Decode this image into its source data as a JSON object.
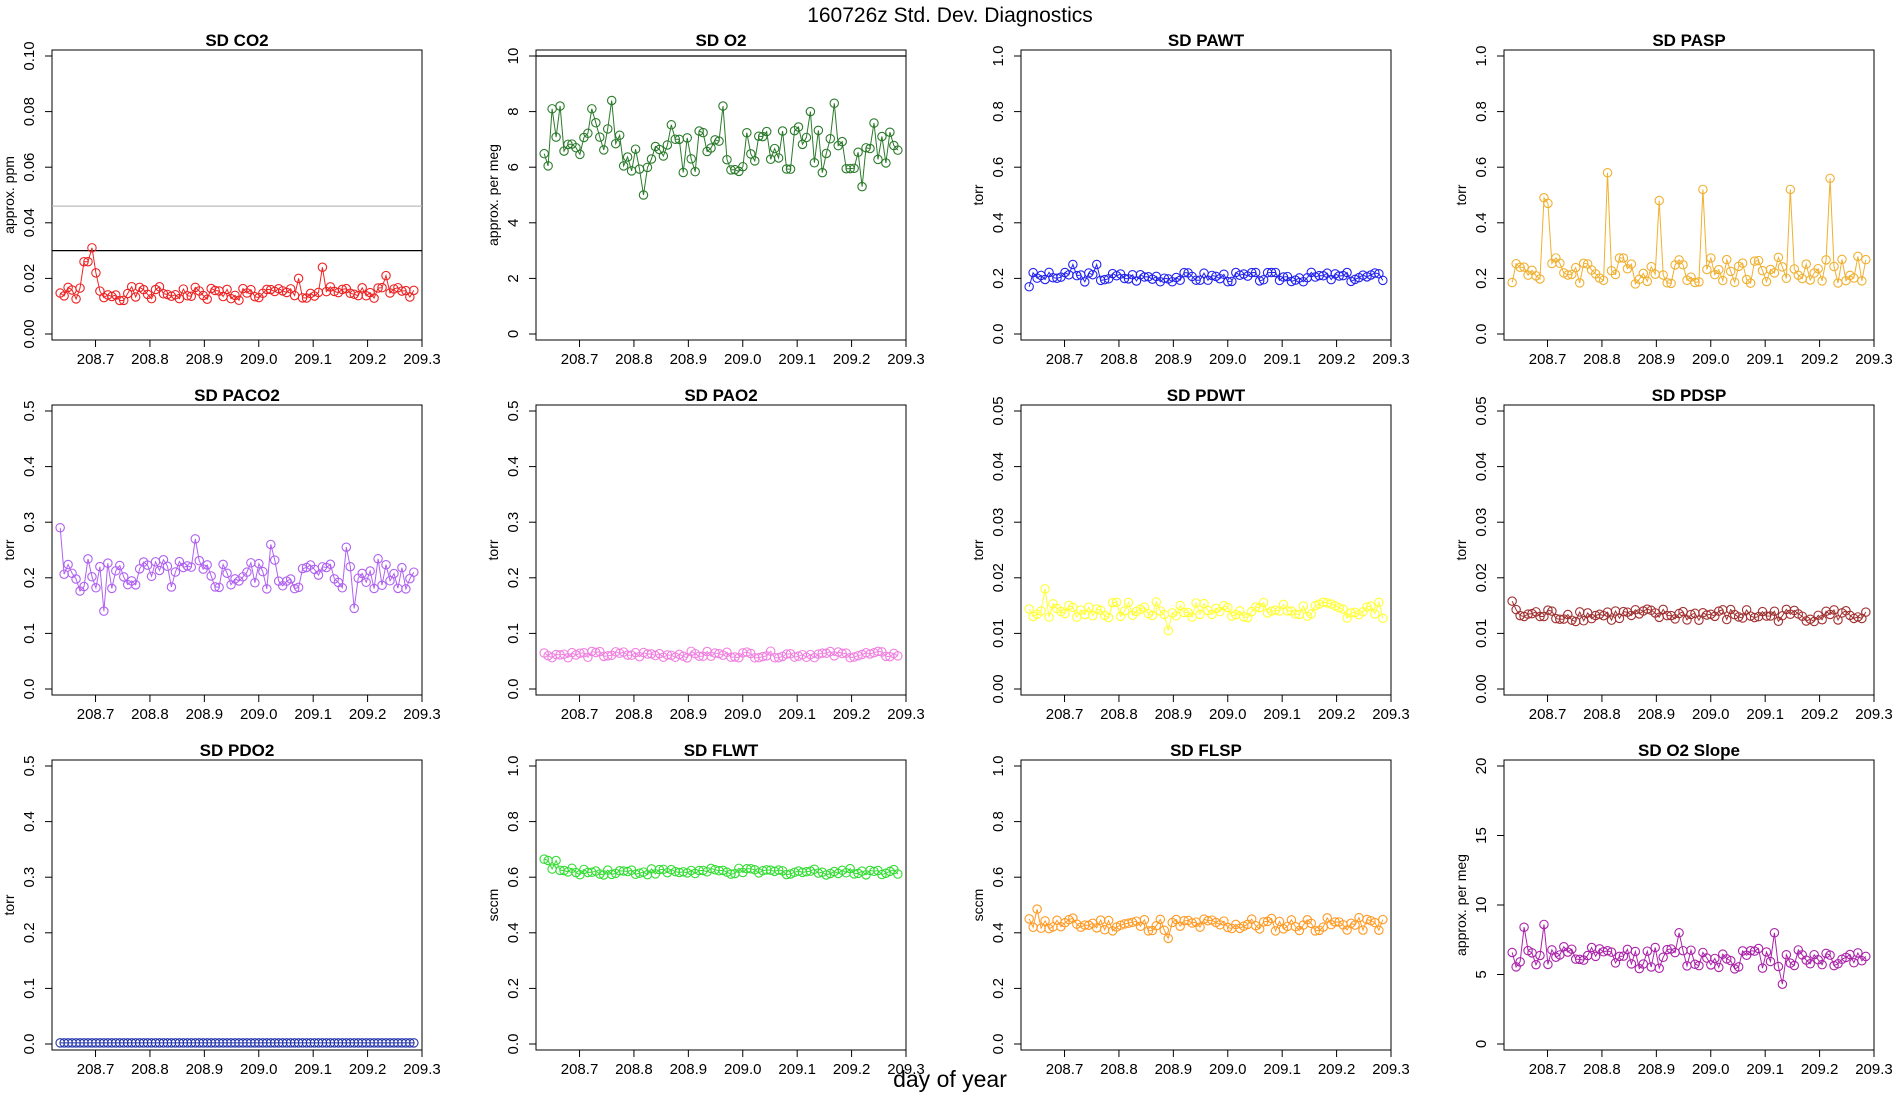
{
  "title": "160726z   Std. Dev. Diagnostics",
  "xlabel": "day of year",
  "chart_data": [
    {
      "type": "scatter",
      "title": "SD CO2",
      "ylabel": "approx. ppm",
      "color": "#ee2222",
      "ylim": [
        0,
        0.1
      ],
      "yticks": [
        "0.00",
        "0.02",
        "0.04",
        "0.06",
        "0.08",
        "0.10"
      ],
      "hlines": [
        {
          "y": 0.03,
          "color": "#000000"
        },
        {
          "y": 0.046,
          "color": "#bbbbbb"
        }
      ],
      "base": 0.0145,
      "amp": 0.0025,
      "spikes": [
        [
          6,
          0.026
        ],
        [
          7,
          0.026
        ],
        [
          8,
          0.031
        ],
        [
          9,
          0.022
        ],
        [
          60,
          0.02
        ],
        [
          66,
          0.024
        ],
        [
          82,
          0.021
        ]
      ],
      "seed": 1
    },
    {
      "type": "scatter",
      "title": "SD O2",
      "ylabel": "approx. per meg",
      "color": "#2a7a2a",
      "ylim": [
        0,
        10
      ],
      "yticks": [
        "0",
        "2",
        "4",
        "6",
        "8",
        "10"
      ],
      "hlines": [
        {
          "y": 10,
          "color": "#000000"
        }
      ],
      "base": 6.7,
      "amp": 0.9,
      "spikes": [
        [
          2,
          8.1
        ],
        [
          4,
          8.2
        ],
        [
          12,
          8.1
        ],
        [
          17,
          8.4
        ],
        [
          25,
          5.0
        ],
        [
          45,
          8.2
        ],
        [
          67,
          8.0
        ],
        [
          73,
          8.3
        ],
        [
          80,
          5.3
        ]
      ],
      "seed": 2
    },
    {
      "type": "scatter",
      "title": "SD PAWT",
      "ylabel": "torr",
      "color": "#2222ee",
      "ylim": [
        0,
        1
      ],
      "yticks": [
        "0.0",
        "0.2",
        "0.4",
        "0.6",
        "0.8",
        "1.0"
      ],
      "hlines": [],
      "base": 0.205,
      "amp": 0.018,
      "spikes": [
        [
          0,
          0.17
        ],
        [
          11,
          0.25
        ],
        [
          17,
          0.25
        ]
      ],
      "seed": 3
    },
    {
      "type": "scatter",
      "title": "SD PASP",
      "ylabel": "torr",
      "color": "#f0b030",
      "ylim": [
        0,
        1
      ],
      "yticks": [
        "0.0",
        "0.2",
        "0.4",
        "0.6",
        "0.8",
        "1.0"
      ],
      "hlines": [],
      "base": 0.23,
      "amp": 0.05,
      "spikes": [
        [
          8,
          0.49
        ],
        [
          9,
          0.47
        ],
        [
          24,
          0.58
        ],
        [
          37,
          0.48
        ],
        [
          48,
          0.52
        ],
        [
          70,
          0.52
        ],
        [
          80,
          0.56
        ]
      ],
      "seed": 4
    },
    {
      "type": "scatter",
      "title": "SD PACO2",
      "ylabel": "torr",
      "color": "#b060f0",
      "ylim": [
        0,
        0.5
      ],
      "yticks": [
        "0.0",
        "0.1",
        "0.2",
        "0.3",
        "0.4",
        "0.5"
      ],
      "hlines": [],
      "base": 0.205,
      "amp": 0.03,
      "spikes": [
        [
          0,
          0.29
        ],
        [
          11,
          0.14
        ],
        [
          34,
          0.27
        ],
        [
          53,
          0.26
        ],
        [
          72,
          0.255
        ],
        [
          74,
          0.145
        ]
      ],
      "seed": 5
    },
    {
      "type": "scatter",
      "title": "SD PAO2",
      "ylabel": "torr",
      "color": "#f080e0",
      "ylim": [
        0,
        0.5
      ],
      "yticks": [
        "0.0",
        "0.1",
        "0.2",
        "0.3",
        "0.4",
        "0.5"
      ],
      "hlines": [],
      "base": 0.062,
      "amp": 0.006,
      "spikes": [],
      "seed": 6
    },
    {
      "type": "scatter",
      "title": "SD PDWT",
      "ylabel": "torr",
      "color": "#ffff33",
      "ylim": [
        0,
        0.05
      ],
      "yticks": [
        "0.00",
        "0.01",
        "0.02",
        "0.03",
        "0.04",
        "0.05"
      ],
      "hlines": [],
      "base": 0.0142,
      "amp": 0.0015,
      "spikes": [
        [
          4,
          0.018
        ],
        [
          35,
          0.0105
        ]
      ],
      "seed": 7
    },
    {
      "type": "scatter",
      "title": "SD PDSP",
      "ylabel": "torr",
      "color": "#a03030",
      "ylim": [
        0,
        0.05
      ],
      "yticks": [
        "0.00",
        "0.01",
        "0.02",
        "0.03",
        "0.04",
        "0.05"
      ],
      "hlines": [],
      "base": 0.0133,
      "amp": 0.0012,
      "spikes": [
        [
          0,
          0.0158
        ]
      ],
      "seed": 8
    },
    {
      "type": "scatter",
      "title": "SD PDO2",
      "ylabel": "torr",
      "color": "#2233aa",
      "ylim": [
        0,
        0.5
      ],
      "yticks": [
        "0.0",
        "0.1",
        "0.2",
        "0.3",
        "0.4",
        "0.5"
      ],
      "hlines": [],
      "base": 0.002,
      "amp": 0.0,
      "spikes": [],
      "seed": 9
    },
    {
      "type": "scatter",
      "title": "SD FLWT",
      "ylabel": "sccm",
      "color": "#33dd33",
      "ylim": [
        0,
        1
      ],
      "yticks": [
        "0.0",
        "0.2",
        "0.4",
        "0.6",
        "0.8",
        "1.0"
      ],
      "hlines": [],
      "base": 0.62,
      "amp": 0.012,
      "spikes": [
        [
          0,
          0.665
        ],
        [
          1,
          0.66
        ],
        [
          3,
          0.66
        ]
      ],
      "seed": 10
    },
    {
      "type": "scatter",
      "title": "SD FLSP",
      "ylabel": "sccm",
      "color": "#ff9922",
      "ylim": [
        0,
        1
      ],
      "yticks": [
        "0.0",
        "0.2",
        "0.4",
        "0.6",
        "0.8",
        "1.0"
      ],
      "hlines": [],
      "base": 0.43,
      "amp": 0.025,
      "spikes": [
        [
          2,
          0.485
        ],
        [
          35,
          0.38
        ]
      ],
      "seed": 11
    },
    {
      "type": "scatter",
      "title": "SD O2 Slope",
      "ylabel": "approx. per meg",
      "color": "#aa22aa",
      "ylim": [
        0,
        20
      ],
      "yticks": [
        "0",
        "5",
        "10",
        "15",
        "20"
      ],
      "hlines": [],
      "base": 6.2,
      "amp": 0.8,
      "spikes": [
        [
          3,
          8.4
        ],
        [
          8,
          8.6
        ],
        [
          42,
          8.0
        ],
        [
          66,
          8.0
        ],
        [
          68,
          4.3
        ]
      ],
      "seed": 12
    }
  ],
  "x_axis": {
    "xlim": [
      208.62,
      209.3
    ],
    "ticks": [
      "208.7",
      "208.8",
      "208.9",
      "209.0",
      "209.1",
      "209.2",
      "209.3"
    ],
    "n_points": 90
  }
}
